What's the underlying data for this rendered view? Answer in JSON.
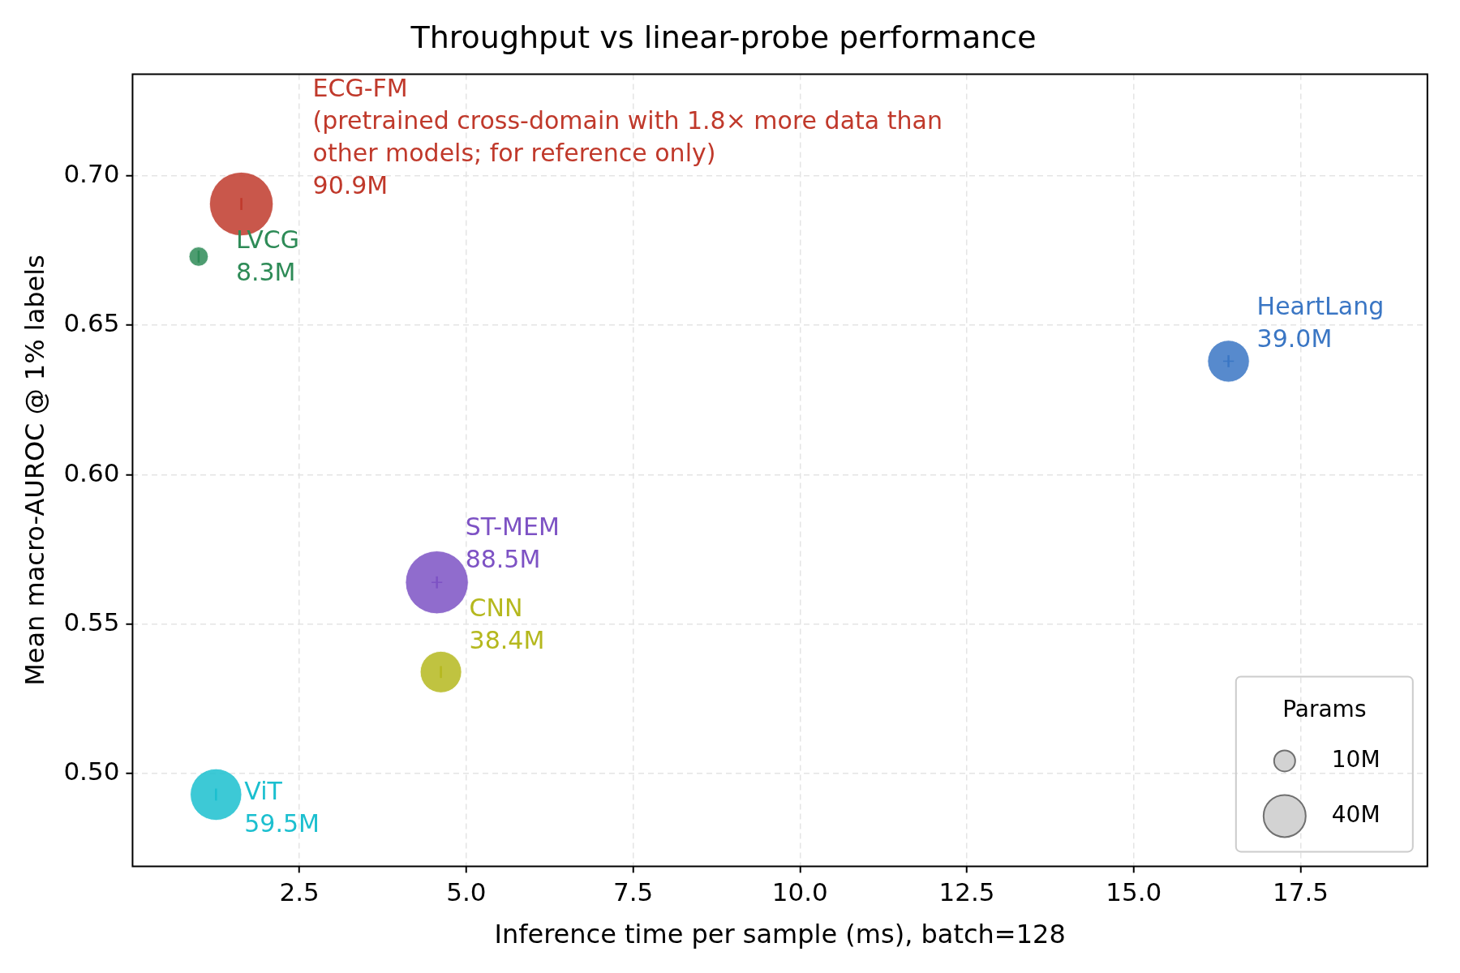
{
  "chart_data": {
    "type": "bubble",
    "title": "Throughput vs linear-probe performance",
    "xlabel": "Inference time per sample (ms), batch=128",
    "ylabel": "Mean macro-AUROC @ 1% labels",
    "xlim": [
      0,
      19.4
    ],
    "ylim": [
      0.469,
      0.734
    ],
    "xticks": [
      {
        "value": 2.5,
        "label": "2.5"
      },
      {
        "value": 5,
        "label": "5.0"
      },
      {
        "value": 7.5,
        "label": "7.5"
      },
      {
        "value": 10,
        "label": "10.0"
      },
      {
        "value": 12.5,
        "label": "12.5"
      },
      {
        "value": 15,
        "label": "15.0"
      },
      {
        "value": 17.5,
        "label": "17.5"
      }
    ],
    "yticks": [
      {
        "value": 0.5,
        "label": "0.50"
      },
      {
        "value": 0.55,
        "label": "0.55"
      },
      {
        "value": 0.6,
        "label": "0.60"
      },
      {
        "value": 0.65,
        "label": "0.65"
      },
      {
        "value": 0.7,
        "label": "0.70"
      }
    ],
    "grid": true,
    "legend_title": "Params",
    "size_legend": [
      {
        "value": 10,
        "label": "10M"
      },
      {
        "value": 40,
        "label": "40M"
      }
    ],
    "annotations": [
      "ECG-FM",
      "(pretrained cross-domain with 1.8× more data than other models; for reference only)",
      {
        "text": "LVCG",
        "x": 0.99,
        "y": 0.673
      },
      {
        "text": "HeartLang",
        "x": 16.42,
        "y": 0.638
      },
      {
        "text": "ST-MEM",
        "x": 4.56,
        "y": 0.564
      },
      {
        "text": "CNN",
        "x": 4.62,
        "y": 0.534
      },
      {
        "text": "ViT",
        "x": 1.25,
        "y": 0.493
      }
    ],
    "series": [
      {
        "color": "#c0392b",
        "x": [
          1.63
        ],
        "values": [
          0.6906
        ],
        "sizes": [
          90.9
        ],
        "value_labels": [
          "90.9M"
        ],
        "errors": [
          0.002
        ]
      },
      {
        "color": "#2e8b57",
        "x": [
          0.99
        ],
        "values": [
          0.673
        ],
        "sizes": [
          8.3
        ],
        "value_labels": [
          "8.3M"
        ],
        "errors": [
          0.002
        ]
      },
      {
        "color": "#3a76c4",
        "x": [
          16.42
        ],
        "values": [
          0.638
        ],
        "sizes": [
          39.0
        ],
        "value_labels": [
          "39.0M"
        ],
        "errors": [
          0.002
        ],
        "xerrors": [
          0.08
        ]
      },
      {
        "color": "#7d52c4",
        "x": [
          4.56
        ],
        "values": [
          0.564
        ],
        "sizes": [
          88.5
        ],
        "value_labels": [
          "88.5M"
        ],
        "errors": [
          0.002
        ],
        "xerrors": [
          0.08
        ]
      },
      {
        "color": "#b5b81e",
        "x": [
          4.62
        ],
        "values": [
          0.534
        ],
        "sizes": [
          38.4
        ],
        "value_labels": [
          "38.4M"
        ],
        "errors": [
          0.002
        ]
      },
      {
        "color": "#1bbfcf",
        "x": [
          1.25
        ],
        "values": [
          0.493
        ],
        "sizes": [
          59.5
        ],
        "value_labels": [
          "59.5M"
        ],
        "errors": [
          0.002
        ]
      }
    ]
  }
}
